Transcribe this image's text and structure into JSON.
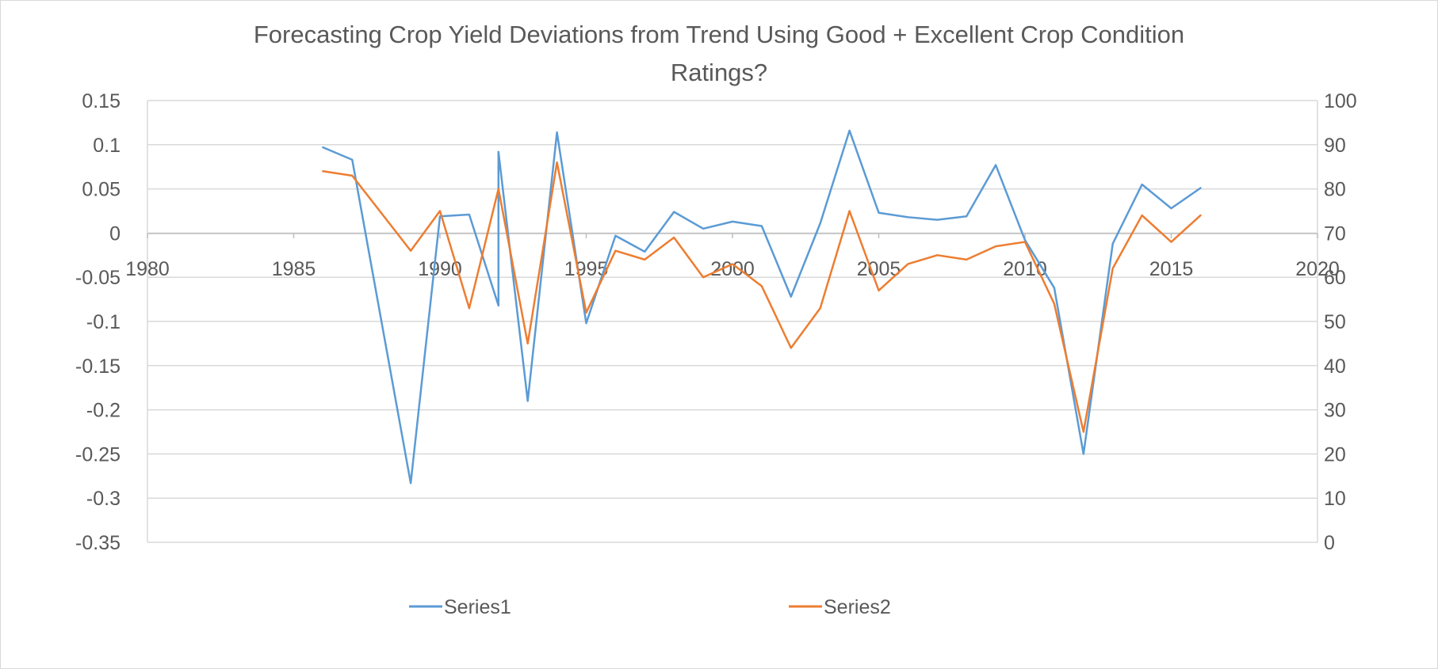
{
  "chart_data": {
    "type": "line",
    "title": "Forecasting Crop Yield Deviations from Trend Using Good + Excellent Crop Condition Ratings?",
    "title_lines": [
      "Forecasting Crop Yield Deviations from Trend Using Good + Excellent Crop Condition",
      "Ratings?"
    ],
    "xlabel": "",
    "ylabel": "",
    "y2label": "",
    "xlim": [
      1980,
      2020
    ],
    "ylim": [
      -0.35,
      0.15
    ],
    "y2lim": [
      0,
      100
    ],
    "x_ticks": [
      "1980",
      "1985",
      "1990",
      "1995",
      "2000",
      "2005",
      "2010",
      "2015",
      "2020"
    ],
    "y_ticks": [
      "0.15",
      "0.1",
      "0.05",
      "0",
      "-0.05",
      "-0.1",
      "-0.15",
      "-0.2",
      "-0.25",
      "-0.3",
      "-0.35"
    ],
    "y2_ticks": [
      "100",
      "90",
      "80",
      "70",
      "60",
      "50",
      "40",
      "30",
      "20",
      "10",
      "0"
    ],
    "grid": true,
    "legend_position": "bottom",
    "series": [
      {
        "name": "Series1",
        "axis": "left",
        "color": "#5B9BD5",
        "points": [
          [
            1986,
            0.097
          ],
          [
            1987,
            0.083
          ],
          [
            1989,
            -0.283
          ],
          [
            1990,
            0.019
          ],
          [
            1991,
            0.021
          ],
          [
            1992,
            -0.082
          ],
          [
            1992,
            0.092
          ],
          [
            1993,
            -0.19
          ],
          [
            1994,
            0.114
          ],
          [
            1995,
            -0.102
          ],
          [
            1996,
            -0.003
          ],
          [
            1997,
            -0.021
          ],
          [
            1998,
            0.024
          ],
          [
            1999,
            0.005
          ],
          [
            2000,
            0.013
          ],
          [
            2001,
            0.008
          ],
          [
            2002,
            -0.072
          ],
          [
            2003,
            0.011
          ],
          [
            2004,
            0.116
          ],
          [
            2005,
            0.023
          ],
          [
            2006,
            0.018
          ],
          [
            2007,
            0.015
          ],
          [
            2008,
            0.019
          ],
          [
            2009,
            0.077
          ],
          [
            2010,
            -0.008
          ],
          [
            2011,
            -0.062
          ],
          [
            2012,
            -0.25
          ],
          [
            2013,
            -0.012
          ],
          [
            2014,
            0.055
          ],
          [
            2015,
            0.028
          ],
          [
            2016,
            0.051
          ]
        ]
      },
      {
        "name": "Series2",
        "axis": "right",
        "color": "#ED7D31",
        "points": [
          [
            1986,
            84
          ],
          [
            1987,
            83
          ],
          [
            1989,
            66
          ],
          [
            1990,
            75
          ],
          [
            1991,
            53
          ],
          [
            1992,
            80
          ],
          [
            1993,
            45
          ],
          [
            1994,
            86
          ],
          [
            1995,
            52
          ],
          [
            1996,
            66
          ],
          [
            1997,
            64
          ],
          [
            1998,
            69
          ],
          [
            1999,
            60
          ],
          [
            2000,
            63
          ],
          [
            2001,
            58
          ],
          [
            2002,
            44
          ],
          [
            2003,
            53
          ],
          [
            2004,
            75
          ],
          [
            2005,
            57
          ],
          [
            2006,
            63
          ],
          [
            2007,
            65
          ],
          [
            2008,
            64
          ],
          [
            2009,
            67
          ],
          [
            2010,
            68
          ],
          [
            2011,
            54
          ],
          [
            2012,
            25
          ],
          [
            2013,
            62
          ],
          [
            2014,
            74
          ],
          [
            2015,
            68
          ],
          [
            2016,
            74
          ]
        ]
      }
    ]
  }
}
